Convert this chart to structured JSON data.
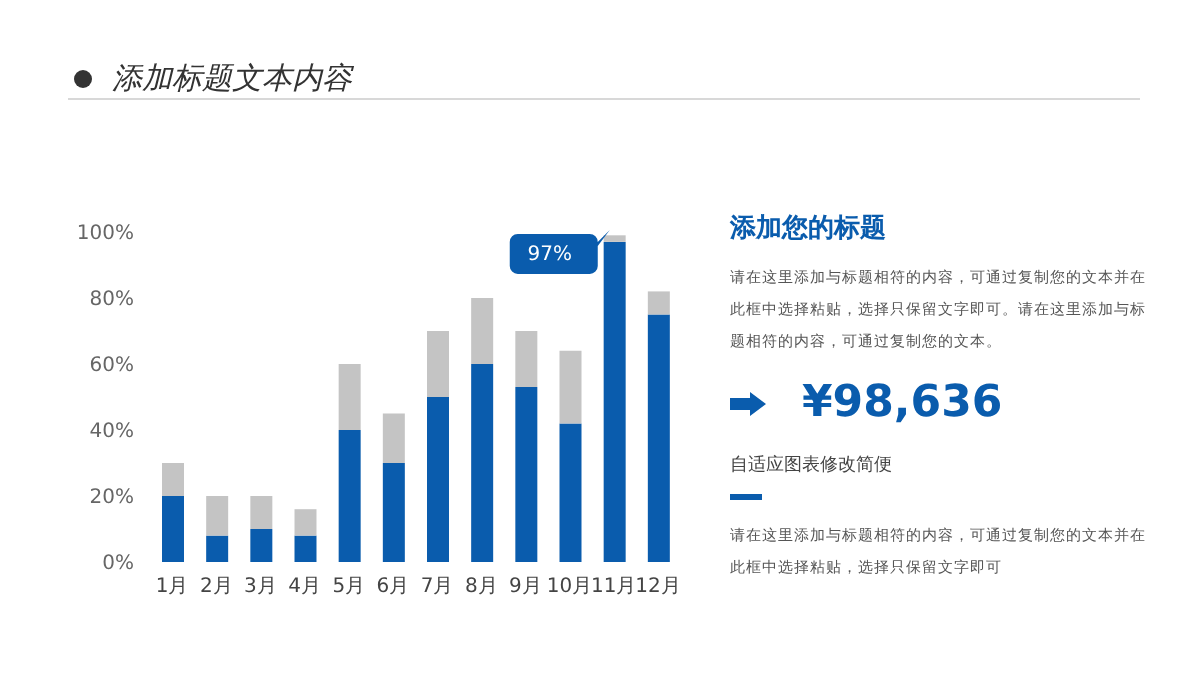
{
  "chart_data": {
    "type": "bar",
    "title": "添加标题文本内容",
    "stacked": true,
    "categories": [
      "1月",
      "2月",
      "3月",
      "4月",
      "5月",
      "6月",
      "7月",
      "8月",
      "9月",
      "10月",
      "11月",
      "12月"
    ],
    "series": [
      {
        "color": "#0a5cad",
        "values": [
          20,
          8,
          10,
          8,
          40,
          30,
          50,
          60,
          53,
          42,
          97,
          75
        ]
      },
      {
        "color": "#c4c4c4",
        "values": [
          10,
          12,
          10,
          8,
          20,
          15,
          20,
          20,
          17,
          22,
          2,
          7
        ]
      }
    ],
    "ylim": [
      0,
      100
    ],
    "yticks": [
      {
        "value": 0,
        "label": "0%"
      },
      {
        "value": 20,
        "label": "20%"
      },
      {
        "value": 40,
        "label": "40%"
      },
      {
        "value": 60,
        "label": "60%"
      },
      {
        "value": 80,
        "label": "80%"
      },
      {
        "value": 100,
        "label": "100%"
      }
    ],
    "grid": false,
    "legend": false,
    "annotations": [
      {
        "text": "97%",
        "x": "11月",
        "y": 97
      },
      "添加您的标题",
      "请在这里添加与标题相符的内容，可通过复制您的文本并在此框中选择粘贴，选择只保留文字即可。请在这里添加与标题相符的内容，可通过复制您的文本。",
      "¥98,636",
      "自适应图表修改简便",
      "请在这里添加与标题相符的内容，可通过复制您的文本并在此框中选择粘贴，选择只保留文字即可"
    ]
  }
}
